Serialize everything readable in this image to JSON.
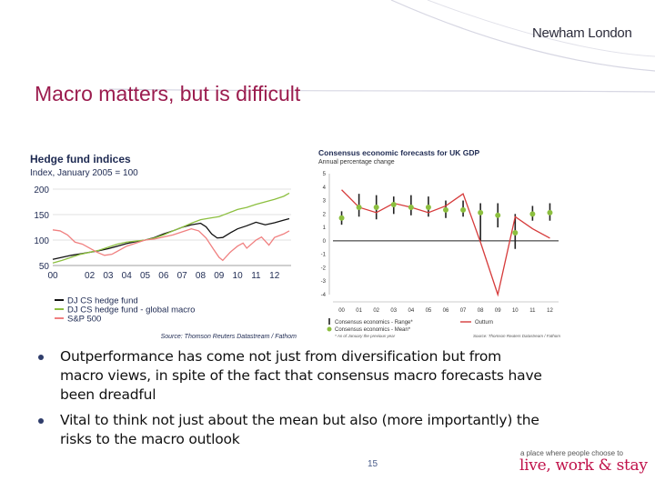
{
  "slide": {
    "title": "Macro matters, but is difficult",
    "logo_text": "Newham London",
    "page_number": "15",
    "tagline": "a place where people choose to",
    "slogan": "live, work & stay",
    "accent_color": "#9b1c4e",
    "bullets": [
      "Outperformance has come not just from diversification but from macro views, in spite of the fact that consensus macro forecasts have been dreadful",
      "Vital to think not just about the mean but also (more importantly) the risks to the macro outlook"
    ]
  },
  "chart_data": [
    {
      "type": "line",
      "title": "Hedge fund indices",
      "subtitle": "Index, January 2005 = 100",
      "source": "Source: Thomson Reuters Datastream / Fathom",
      "x_tick_labels": [
        "00",
        "02",
        "03",
        "04",
        "05",
        "06",
        "07",
        "08",
        "09",
        "10",
        "11",
        "12"
      ],
      "x_range": [
        2000,
        2012.9
      ],
      "y_ticks": [
        50,
        100,
        150,
        200
      ],
      "ylim": [
        50,
        200
      ],
      "series": [
        {
          "name": "DJ CS hedge fund",
          "color": "#111111",
          "x": [
            2000,
            2000.5,
            2001,
            2001.5,
            2002,
            2002.5,
            2003,
            2003.5,
            2004,
            2004.5,
            2005,
            2005.5,
            2006,
            2006.5,
            2007,
            2007.5,
            2008,
            2008.3,
            2008.6,
            2008.9,
            2009.2,
            2009.6,
            2010,
            2010.5,
            2011,
            2011.5,
            2012,
            2012.5,
            2012.8
          ],
          "values": [
            62,
            66,
            70,
            73,
            76,
            79,
            83,
            88,
            93,
            97,
            100,
            105,
            112,
            118,
            125,
            130,
            133,
            126,
            112,
            104,
            105,
            114,
            122,
            128,
            135,
            130,
            134,
            139,
            142
          ]
        },
        {
          "name": "DJ CS hedge fund - global macro",
          "color": "#8cbf3f",
          "x": [
            2000,
            2000.5,
            2001,
            2001.5,
            2002,
            2002.5,
            2003,
            2003.5,
            2004,
            2004.5,
            2005,
            2005.5,
            2006,
            2006.5,
            2007,
            2007.5,
            2008,
            2008.5,
            2009,
            2009.5,
            2010,
            2010.5,
            2011,
            2011.5,
            2012,
            2012.5,
            2012.8
          ],
          "values": [
            55,
            60,
            66,
            72,
            76,
            80,
            86,
            92,
            96,
            98,
            100,
            104,
            110,
            118,
            125,
            133,
            140,
            143,
            146,
            153,
            160,
            164,
            170,
            175,
            180,
            186,
            192
          ]
        },
        {
          "name": "S&P 500",
          "color": "#f08080",
          "x": [
            2000,
            2000.4,
            2000.8,
            2001.2,
            2001.6,
            2002,
            2002.4,
            2002.8,
            2003.2,
            2003.6,
            2004,
            2004.5,
            2005,
            2005.5,
            2006,
            2006.5,
            2007,
            2007.5,
            2007.9,
            2008.3,
            2008.7,
            2009,
            2009.2,
            2009.6,
            2010,
            2010.3,
            2010.5,
            2011,
            2011.3,
            2011.7,
            2012,
            2012.5,
            2012.8
          ],
          "values": [
            120,
            118,
            110,
            96,
            92,
            84,
            76,
            70,
            72,
            80,
            88,
            94,
            100,
            102,
            106,
            110,
            116,
            122,
            118,
            104,
            82,
            66,
            60,
            76,
            88,
            94,
            84,
            100,
            106,
            90,
            105,
            112,
            118
          ]
        }
      ]
    },
    {
      "type": "line",
      "title": "Consensus economic forecasts for UK GDP",
      "subtitle": "Annual percentage change",
      "categories": [
        "00",
        "01",
        "02",
        "03",
        "04",
        "05",
        "06",
        "07",
        "08",
        "09",
        "10",
        "11",
        "12"
      ],
      "ylim": [
        -4,
        5
      ],
      "y_ticks": [
        -4,
        -3,
        -2,
        -1,
        0,
        1,
        2,
        3,
        4,
        5
      ],
      "series": [
        {
          "name": "Outturn",
          "color": "#d63b3b",
          "values": [
            3.8,
            2.5,
            2.1,
            2.8,
            2.5,
            2.1,
            2.6,
            3.5,
            -0.1,
            -4.0,
            1.8,
            0.9,
            0.2
          ]
        },
        {
          "name": "Consensus economics - Mean*",
          "color": "#8cbf3f",
          "values": [
            1.7,
            2.5,
            2.5,
            2.7,
            2.5,
            2.5,
            2.3,
            2.3,
            2.1,
            1.9,
            0.6,
            2.0,
            2.1
          ]
        },
        {
          "name": "Consensus economics - Range*",
          "color": "#222222",
          "low": [
            1.2,
            1.8,
            1.6,
            2.0,
            1.9,
            1.8,
            1.7,
            1.8,
            0.0,
            1.0,
            -0.6,
            1.5,
            1.5
          ],
          "high": [
            2.2,
            3.5,
            3.4,
            3.3,
            3.4,
            3.3,
            3.0,
            3.0,
            2.8,
            2.8,
            2.0,
            2.6,
            2.8
          ]
        }
      ],
      "legend": [
        "Consensus economics - Range*",
        "Outturn",
        "Consensus economics - Mean*"
      ],
      "footnote": "* As of January the previous year",
      "source": "Source: Thomson Reuters Datastream / Fathom"
    }
  ]
}
